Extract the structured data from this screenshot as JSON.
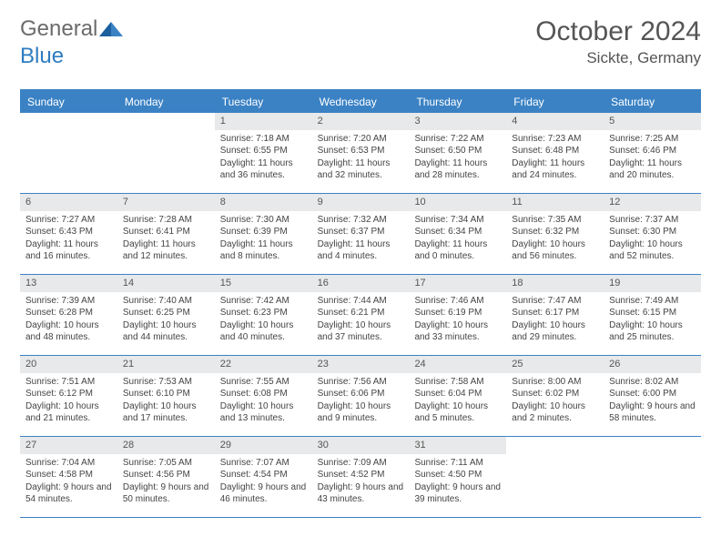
{
  "logo": {
    "text1": "General",
    "text2": "Blue"
  },
  "title": "October 2024",
  "location": "Sickte, Germany",
  "colors": {
    "header_bg": "#3b82c4",
    "header_text": "#ffffff",
    "daynum_bg": "#e8e9ea",
    "border": "#3b82c4",
    "text": "#444444",
    "title_text": "#555555",
    "logo_gray": "#6b6b6b",
    "logo_blue": "#2e7cc0"
  },
  "day_names": [
    "Sunday",
    "Monday",
    "Tuesday",
    "Wednesday",
    "Thursday",
    "Friday",
    "Saturday"
  ],
  "weeks": [
    [
      null,
      null,
      {
        "n": "1",
        "sr": "7:18 AM",
        "ss": "6:55 PM",
        "dl": "11 hours and 36 minutes."
      },
      {
        "n": "2",
        "sr": "7:20 AM",
        "ss": "6:53 PM",
        "dl": "11 hours and 32 minutes."
      },
      {
        "n": "3",
        "sr": "7:22 AM",
        "ss": "6:50 PM",
        "dl": "11 hours and 28 minutes."
      },
      {
        "n": "4",
        "sr": "7:23 AM",
        "ss": "6:48 PM",
        "dl": "11 hours and 24 minutes."
      },
      {
        "n": "5",
        "sr": "7:25 AM",
        "ss": "6:46 PM",
        "dl": "11 hours and 20 minutes."
      }
    ],
    [
      {
        "n": "6",
        "sr": "7:27 AM",
        "ss": "6:43 PM",
        "dl": "11 hours and 16 minutes."
      },
      {
        "n": "7",
        "sr": "7:28 AM",
        "ss": "6:41 PM",
        "dl": "11 hours and 12 minutes."
      },
      {
        "n": "8",
        "sr": "7:30 AM",
        "ss": "6:39 PM",
        "dl": "11 hours and 8 minutes."
      },
      {
        "n": "9",
        "sr": "7:32 AM",
        "ss": "6:37 PM",
        "dl": "11 hours and 4 minutes."
      },
      {
        "n": "10",
        "sr": "7:34 AM",
        "ss": "6:34 PM",
        "dl": "11 hours and 0 minutes."
      },
      {
        "n": "11",
        "sr": "7:35 AM",
        "ss": "6:32 PM",
        "dl": "10 hours and 56 minutes."
      },
      {
        "n": "12",
        "sr": "7:37 AM",
        "ss": "6:30 PM",
        "dl": "10 hours and 52 minutes."
      }
    ],
    [
      {
        "n": "13",
        "sr": "7:39 AM",
        "ss": "6:28 PM",
        "dl": "10 hours and 48 minutes."
      },
      {
        "n": "14",
        "sr": "7:40 AM",
        "ss": "6:25 PM",
        "dl": "10 hours and 44 minutes."
      },
      {
        "n": "15",
        "sr": "7:42 AM",
        "ss": "6:23 PM",
        "dl": "10 hours and 40 minutes."
      },
      {
        "n": "16",
        "sr": "7:44 AM",
        "ss": "6:21 PM",
        "dl": "10 hours and 37 minutes."
      },
      {
        "n": "17",
        "sr": "7:46 AM",
        "ss": "6:19 PM",
        "dl": "10 hours and 33 minutes."
      },
      {
        "n": "18",
        "sr": "7:47 AM",
        "ss": "6:17 PM",
        "dl": "10 hours and 29 minutes."
      },
      {
        "n": "19",
        "sr": "7:49 AM",
        "ss": "6:15 PM",
        "dl": "10 hours and 25 minutes."
      }
    ],
    [
      {
        "n": "20",
        "sr": "7:51 AM",
        "ss": "6:12 PM",
        "dl": "10 hours and 21 minutes."
      },
      {
        "n": "21",
        "sr": "7:53 AM",
        "ss": "6:10 PM",
        "dl": "10 hours and 17 minutes."
      },
      {
        "n": "22",
        "sr": "7:55 AM",
        "ss": "6:08 PM",
        "dl": "10 hours and 13 minutes."
      },
      {
        "n": "23",
        "sr": "7:56 AM",
        "ss": "6:06 PM",
        "dl": "10 hours and 9 minutes."
      },
      {
        "n": "24",
        "sr": "7:58 AM",
        "ss": "6:04 PM",
        "dl": "10 hours and 5 minutes."
      },
      {
        "n": "25",
        "sr": "8:00 AM",
        "ss": "6:02 PM",
        "dl": "10 hours and 2 minutes."
      },
      {
        "n": "26",
        "sr": "8:02 AM",
        "ss": "6:00 PM",
        "dl": "9 hours and 58 minutes."
      }
    ],
    [
      {
        "n": "27",
        "sr": "7:04 AM",
        "ss": "4:58 PM",
        "dl": "9 hours and 54 minutes."
      },
      {
        "n": "28",
        "sr": "7:05 AM",
        "ss": "4:56 PM",
        "dl": "9 hours and 50 minutes."
      },
      {
        "n": "29",
        "sr": "7:07 AM",
        "ss": "4:54 PM",
        "dl": "9 hours and 46 minutes."
      },
      {
        "n": "30",
        "sr": "7:09 AM",
        "ss": "4:52 PM",
        "dl": "9 hours and 43 minutes."
      },
      {
        "n": "31",
        "sr": "7:11 AM",
        "ss": "4:50 PM",
        "dl": "9 hours and 39 minutes."
      },
      null,
      null
    ]
  ],
  "labels": {
    "sunrise": "Sunrise: ",
    "sunset": "Sunset: ",
    "daylight": "Daylight: "
  }
}
